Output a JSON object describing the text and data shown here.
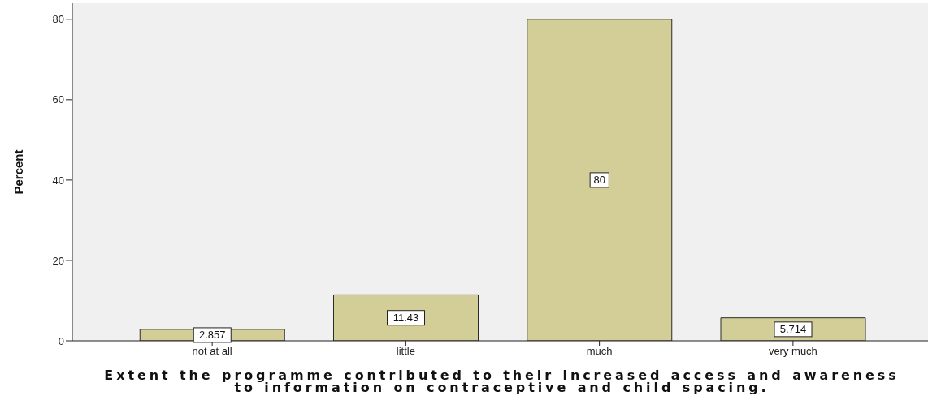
{
  "chart_data": {
    "type": "bar",
    "categories": [
      "not at all",
      "little",
      "much",
      "very much"
    ],
    "values": [
      2.857,
      11.43,
      80,
      5.714
    ],
    "color": "#d3ce97",
    "ylim": [
      0,
      84
    ],
    "yticks": [
      0,
      20,
      40,
      60,
      80
    ],
    "ylabel": "Percent",
    "xlabel": "Extent the programme contributed to their increased access and awareness to information on contraceptive and child spacing.",
    "data_labels": true
  }
}
